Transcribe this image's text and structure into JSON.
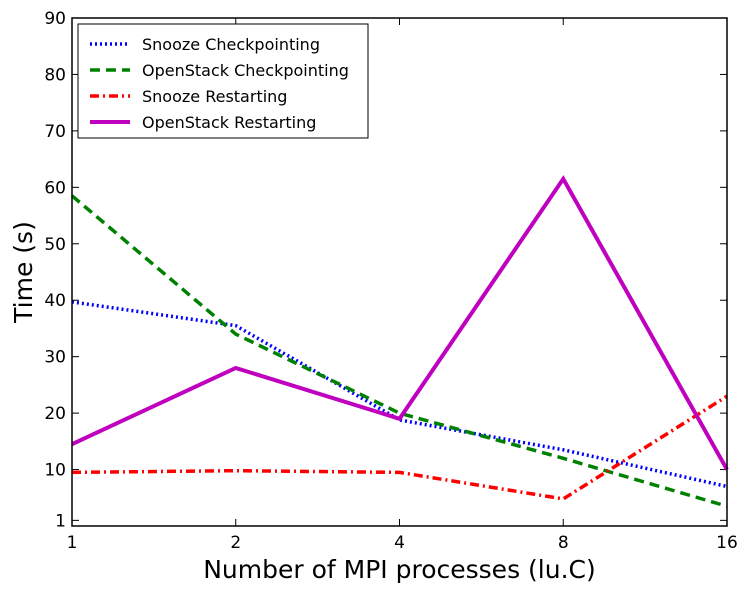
{
  "chart_data": {
    "type": "line",
    "title": "",
    "xlabel": "Number of MPI processes (lu.C)",
    "ylabel": "Time (s)",
    "categories": [
      "1",
      "2",
      "4",
      "8",
      "16"
    ],
    "yticks": [
      "1",
      "10",
      "20",
      "30",
      "40",
      "50",
      "60",
      "70",
      "80",
      "90"
    ],
    "ylim": [
      0,
      90
    ],
    "legend_position": "top-left",
    "series": [
      {
        "name": "Snooze Checkpointing",
        "color": "#0000ff",
        "style": "dotted",
        "values": [
          39.7,
          35.5,
          18.8,
          13.5,
          7.0
        ]
      },
      {
        "name": "OpenStack Checkpointing",
        "color": "#008000",
        "style": "dashed",
        "values": [
          58.5,
          34.0,
          20.0,
          12.0,
          3.5
        ]
      },
      {
        "name": "Snooze Restarting",
        "color": "#ff0000",
        "style": "dashdot",
        "values": [
          9.5,
          9.8,
          9.5,
          4.8,
          23.0
        ]
      },
      {
        "name": "OpenStack Restarting",
        "color": "#bf00bf",
        "style": "solid",
        "values": [
          14.5,
          28.0,
          19.0,
          61.5,
          10.0
        ]
      }
    ]
  }
}
